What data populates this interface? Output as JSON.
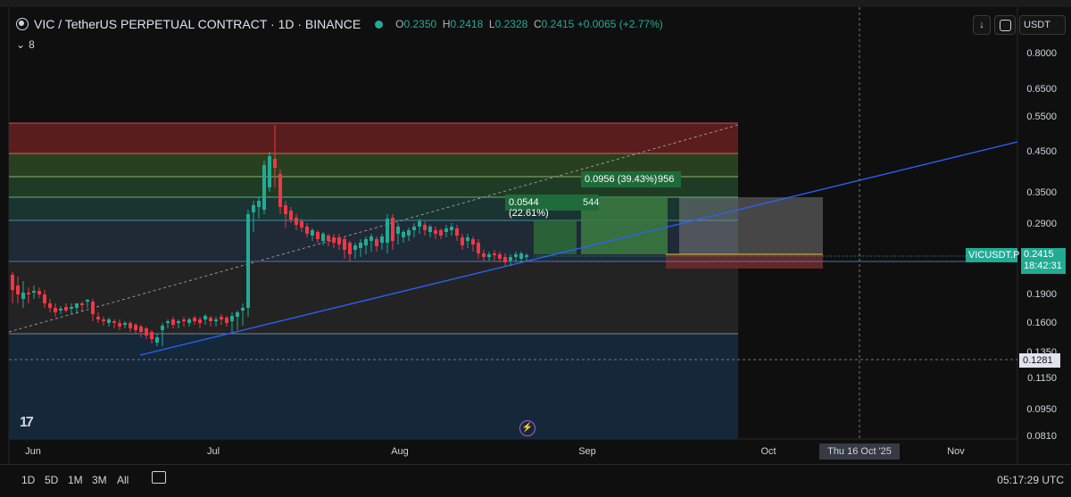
{
  "header": {
    "title": "VIC / TetherUS PERPETUAL CONTRACT · 1D · BINANCE",
    "open_key": "O",
    "open": "0.2350",
    "high_key": "H",
    "high": "0.2418",
    "low_key": "L",
    "low": "0.2328",
    "close_key": "C",
    "close": "0.2415",
    "change": "+0.0065 (+2.77%)",
    "indicator_count": "8"
  },
  "top_controls": {
    "currency": "USDT"
  },
  "price_axis": [
    "0.8000",
    "0.6500",
    "0.5500",
    "0.4500",
    "0.3500",
    "0.2900",
    "0.1900",
    "0.1600",
    "0.1350",
    "0.1150",
    "0.0950",
    "0.0810"
  ],
  "time_axis": [
    "Jun",
    "Jul",
    "Aug",
    "Sep",
    "Oct",
    "Nov"
  ],
  "crosshair": {
    "time": "Thu 16 Oct '25",
    "price": "0.1281"
  },
  "last_price": {
    "symbol": "VICUSDT.P",
    "price": "0.2415",
    "countdown": "18:42:31"
  },
  "measures": {
    "first": {
      "label": "0.0544 (22.61%)",
      "bars": "544"
    },
    "second": {
      "label": "0.0956 (39.43%)",
      "bars": "956"
    }
  },
  "ranges": [
    "1D",
    "5D",
    "1M",
    "3M",
    "All"
  ],
  "clock": "05:17:29 UTC",
  "colors": {
    "up": "#22ab94",
    "down": "#f23645",
    "trend": "#2962ff"
  }
}
